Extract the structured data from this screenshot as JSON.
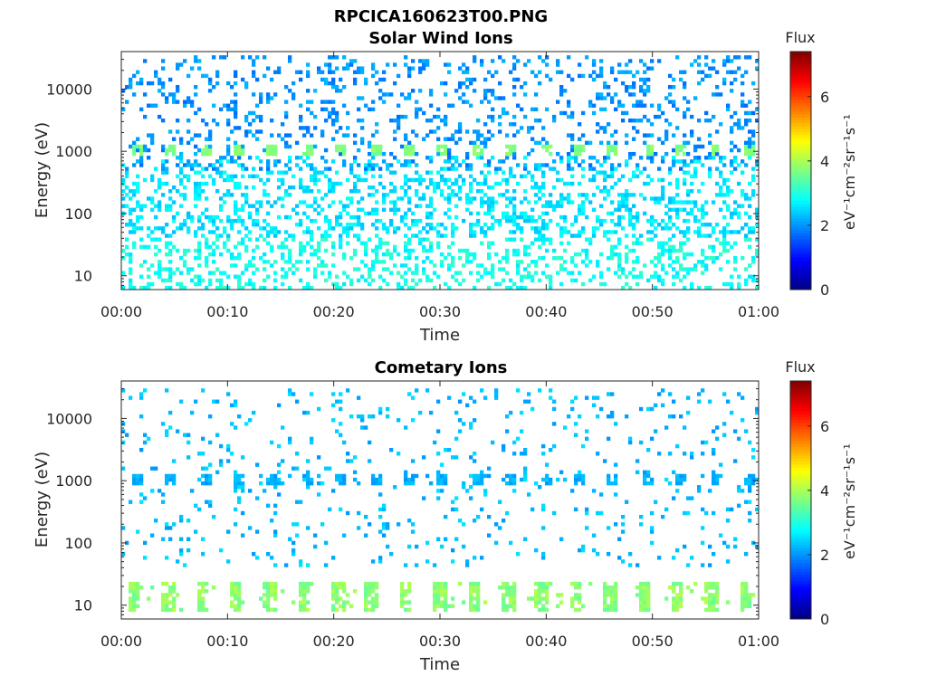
{
  "figure": {
    "title": "RPCICA160623T00.PNG"
  },
  "colorbar": {
    "title": "Flux",
    "units_label": "eV⁻¹cm⁻²sr⁻¹s⁻¹",
    "ticks": [
      "0",
      "2",
      "4",
      "6"
    ],
    "range": [
      0,
      7.4
    ],
    "colormap": "jet"
  },
  "chart_data": [
    {
      "type": "heatmap",
      "title": "Solar Wind Ions",
      "xlabel": "Time",
      "ylabel": "Energy (eV)",
      "x_tick_labels": [
        "00:00",
        "00:10",
        "00:20",
        "00:30",
        "00:40",
        "00:50",
        "01:00"
      ],
      "y_tick_labels": [
        "10",
        "100",
        "1000",
        "10000"
      ],
      "xlim_minutes": [
        0,
        60
      ],
      "ylim": [
        6,
        40000
      ],
      "yscale": "log",
      "grid": false,
      "features": [
        {
          "name": "solar wind peak",
          "energy_eV": 1000,
          "flux": 3.5,
          "period_min": 3.2
        },
        {
          "name": "background high",
          "energy_range_eV": [
            500,
            35000
          ],
          "flux": 2.0
        },
        {
          "name": "background mid",
          "energy_range_eV": [
            40,
            800
          ],
          "flux": 2.6
        },
        {
          "name": "low energy",
          "energy_range_eV": [
            6,
            40
          ],
          "flux": 2.9
        }
      ]
    },
    {
      "type": "heatmap",
      "title": "Cometary Ions",
      "xlabel": "Time",
      "ylabel": "Energy (eV)",
      "x_tick_labels": [
        "00:00",
        "00:10",
        "00:20",
        "00:30",
        "00:40",
        "00:50",
        "01:00"
      ],
      "y_tick_labels": [
        "10",
        "100",
        "1000",
        "10000"
      ],
      "xlim_minutes": [
        0,
        60
      ],
      "ylim": [
        6,
        40000
      ],
      "yscale": "log",
      "grid": false,
      "features": [
        {
          "name": "cometary low-energy bursts",
          "energy_range_eV": [
            8,
            25
          ],
          "flux": 3.8,
          "period_min": 3.2
        },
        {
          "name": "1 keV blips",
          "energy_eV": 1000,
          "flux": 2.0,
          "period_min": 3.2
        },
        {
          "name": "sparse background",
          "energy_range_eV": [
            40,
            30000
          ],
          "flux": 2.3
        }
      ]
    }
  ]
}
